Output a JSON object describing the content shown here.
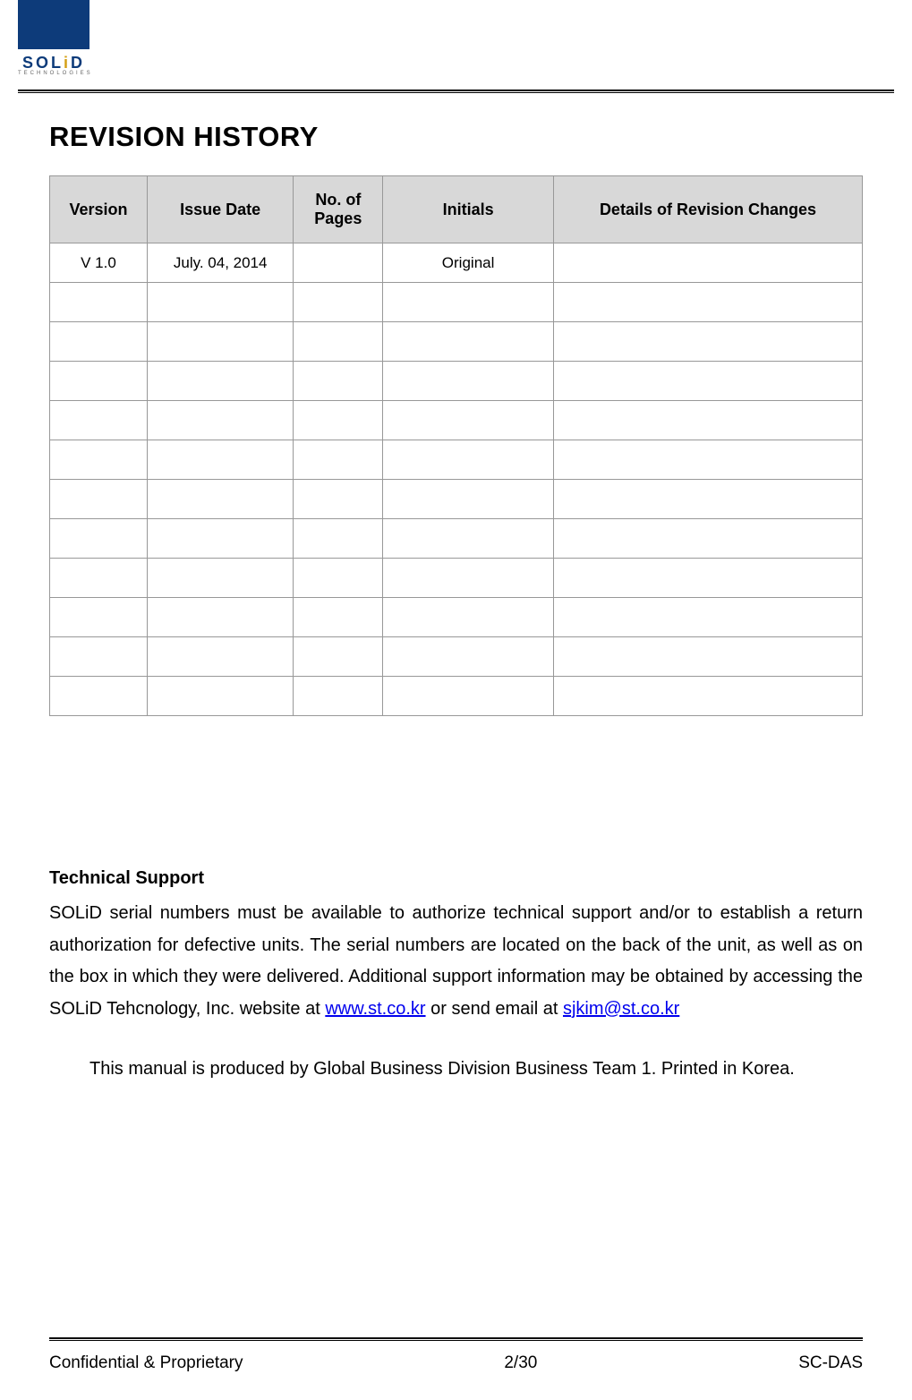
{
  "logo": {
    "brand_letters": "SOL",
    "brand_i": "i",
    "brand_d": "D",
    "subtext": "TECHNOLOGIES",
    "square_color": "#0d3b7a",
    "accent_color": "#d4a017"
  },
  "title": "REVISION HISTORY",
  "table": {
    "header_bg": "#d8d8d8",
    "border_color": "#989898",
    "columns": [
      {
        "label": "Version",
        "width": "12%"
      },
      {
        "label": "Issue Date",
        "width": "18%"
      },
      {
        "label": "No. of Pages",
        "width": "11%"
      },
      {
        "label": "Initials",
        "width": "21%"
      },
      {
        "label": "Details of Revision Changes",
        "width": "38%"
      }
    ],
    "rows": [
      {
        "version": "V 1.0",
        "issue_date": "July. 04, 2014",
        "pages": "",
        "initials": "Original",
        "details": ""
      },
      {
        "version": "",
        "issue_date": "",
        "pages": "",
        "initials": "",
        "details": ""
      },
      {
        "version": "",
        "issue_date": "",
        "pages": "",
        "initials": "",
        "details": ""
      },
      {
        "version": "",
        "issue_date": "",
        "pages": "",
        "initials": "",
        "details": ""
      },
      {
        "version": "",
        "issue_date": "",
        "pages": "",
        "initials": "",
        "details": ""
      },
      {
        "version": "",
        "issue_date": "",
        "pages": "",
        "initials": "",
        "details": ""
      },
      {
        "version": "",
        "issue_date": "",
        "pages": "",
        "initials": "",
        "details": ""
      },
      {
        "version": "",
        "issue_date": "",
        "pages": "",
        "initials": "",
        "details": ""
      },
      {
        "version": "",
        "issue_date": "",
        "pages": "",
        "initials": "",
        "details": ""
      },
      {
        "version": "",
        "issue_date": "",
        "pages": "",
        "initials": "",
        "details": ""
      },
      {
        "version": "",
        "issue_date": "",
        "pages": "",
        "initials": "",
        "details": ""
      },
      {
        "version": "",
        "issue_date": "",
        "pages": "",
        "initials": "",
        "details": ""
      }
    ]
  },
  "support": {
    "heading": "Technical Support",
    "body_part1": "SOLiD serial numbers must be available to authorize technical support and/or to establish a return authorization for defective units. The serial numbers are located on the back of the unit, as well as on the box in which they were delivered. Additional support information may be obtained by accessing the SOLiD Tehcnology, Inc. website at ",
    "link1_text": "www.st.co.kr",
    "body_part2": " or send email at ",
    "link2_text": "sjkim@st.co.kr"
  },
  "manual_note": "This manual is produced by Global Business Division Business Team 1. Printed in Korea.",
  "footer": {
    "left": "Confidential & Proprietary",
    "center": "2/30",
    "right": "SC-DAS"
  }
}
